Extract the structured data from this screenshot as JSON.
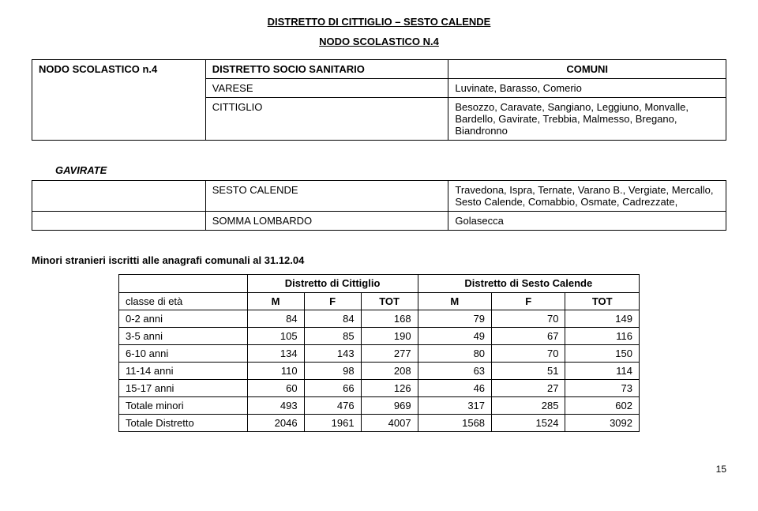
{
  "title_main": "DISTRETTO DI CITTIGLIO – SESTO CALENDE",
  "title_sub": "NODO SCOLASTICO N.4",
  "table1": {
    "rowLabel": "NODO  SCOLASTICO n.4",
    "hdrLeft": "DISTRETTO  SOCIO  SANITARIO",
    "hdrRight": "COMUNI",
    "r1a": "VARESE",
    "r1b": "Luvinate, Barasso, Comerio",
    "r2a": "CITTIGLIO",
    "r2b": "Besozzo, Caravate, Sangiano, Leggiuno, Monvalle, Bardello, Gavirate, Trebbia, Malmesso, Bregano, Biandronno",
    "gavirate": "GAVIRATE",
    "r3a": "SESTO CALENDE",
    "r3b": "Travedona, Ispra, Ternate, Varano B., Vergiate, Mercallo, Sesto Calende, Comabbio, Osmate, Cadrezzate,",
    "r4a": "SOMMA LOMBARDO",
    "r4b": "Golasecca"
  },
  "section_heading": "Minori stranieri iscritti alle anagrafi comunali al 31.12.04",
  "table3": {
    "col_group1": "Distretto di Cittiglio",
    "col_group2": "Distretto di Sesto Calende",
    "rowhead": "classe di età",
    "c1": "M",
    "c2": "F",
    "c3": "TOT",
    "c4": "M",
    "c5": "F",
    "c6": "TOT",
    "rows": [
      {
        "label": "0-2 anni",
        "v": [
          "84",
          "84",
          "168",
          "79",
          "70",
          "149"
        ]
      },
      {
        "label": "3-5 anni",
        "v": [
          "105",
          "85",
          "190",
          "49",
          "67",
          "116"
        ]
      },
      {
        "label": "6-10 anni",
        "v": [
          "134",
          "143",
          "277",
          "80",
          "70",
          "150"
        ]
      },
      {
        "label": "11-14 anni",
        "v": [
          "110",
          "98",
          "208",
          "63",
          "51",
          "114"
        ]
      },
      {
        "label": "15-17 anni",
        "v": [
          "60",
          "66",
          "126",
          "46",
          "27",
          "73"
        ]
      },
      {
        "label": "Totale minori",
        "v": [
          "493",
          "476",
          "969",
          "317",
          "285",
          "602"
        ]
      },
      {
        "label": "Totale  Distretto",
        "v": [
          "2046",
          "1961",
          "4007",
          "1568",
          "1524",
          "3092"
        ]
      }
    ]
  },
  "page_num": "15"
}
